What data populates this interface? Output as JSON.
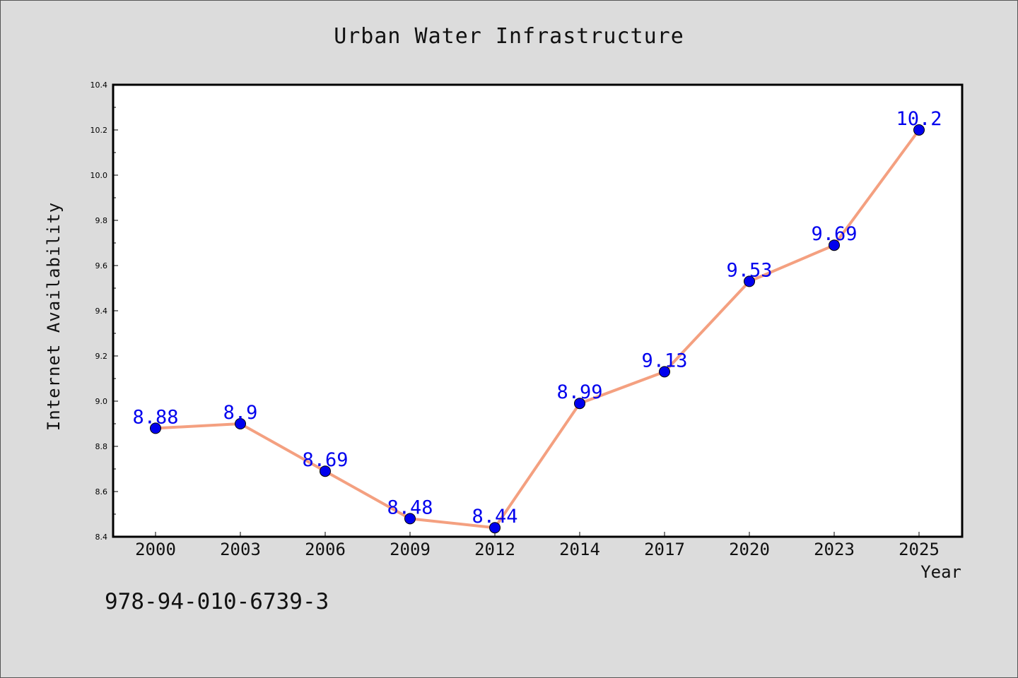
{
  "chart_data": {
    "type": "line",
    "title": "Urban Water Infrastructure",
    "xlabel": "Year",
    "ylabel": "Internet Availability",
    "categories": [
      "2000",
      "2003",
      "2006",
      "2009",
      "2012",
      "2014",
      "2017",
      "2020",
      "2023",
      "2025"
    ],
    "series": [
      {
        "values": [
          8.88,
          8.9,
          8.69,
          8.48,
          8.44,
          8.99,
          9.13,
          9.53,
          9.69,
          10.2
        ],
        "labels": [
          "8.88",
          "8.9",
          "8.69",
          "8.48",
          "8.44",
          "8.99",
          "9.13",
          "9.53",
          "9.69",
          "10.2"
        ]
      }
    ],
    "ylim": [
      8.4,
      10.4
    ],
    "yticks": [
      "8.4",
      "8.6",
      "8.8",
      "9.0",
      "9.2",
      "9.4",
      "9.6",
      "9.8",
      "10.0",
      "10.2",
      "10.4"
    ],
    "grid": false,
    "line_color": "#f4a080",
    "marker_color": "#0000ee",
    "label_color": "#0000ee",
    "background": "#dcdcdc",
    "plot_background": "#ffffff"
  },
  "footer_text": "978-94-010-6739-3"
}
